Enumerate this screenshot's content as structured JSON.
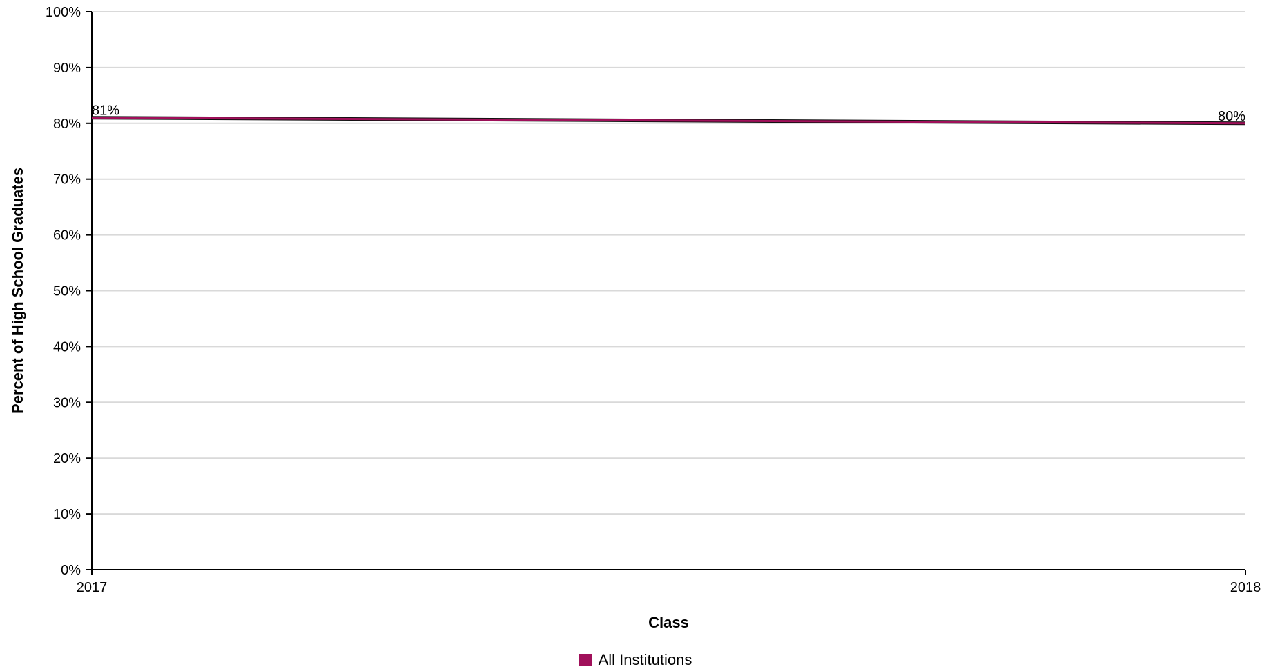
{
  "chart_data": {
    "type": "line",
    "x": [
      "2017",
      "2018"
    ],
    "series": [
      {
        "name": "All Institutions",
        "values": [
          81,
          80
        ],
        "labels": [
          "81%",
          "80%"
        ],
        "color": "#a0105a"
      }
    ],
    "xlabel": "Class",
    "ylabel": "Percent of High School Graduates",
    "ylim": [
      0,
      100
    ],
    "yticks": [
      "0%",
      "10%",
      "20%",
      "30%",
      "40%",
      "50%",
      "60%",
      "70%",
      "80%",
      "90%",
      "100%"
    ],
    "grid": true,
    "legend_position": "bottom-center"
  }
}
